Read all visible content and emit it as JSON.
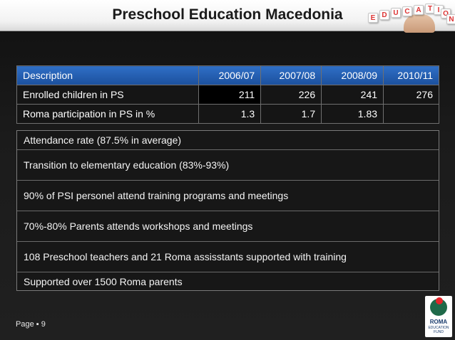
{
  "header": {
    "title": "Preschool Education Macedonia",
    "decoration_letters": [
      "E",
      "D",
      "U",
      "C",
      "A",
      "T",
      "I",
      "O",
      "N"
    ]
  },
  "table": {
    "columns": [
      "Description",
      "2006/07",
      "2007/08",
      "2008/09",
      "2010/11"
    ],
    "rows": [
      [
        "Enrolled children in PS",
        "211",
        "226",
        "241",
        "276"
      ],
      [
        "Roma participation in PS in %",
        "1.3",
        "1.7",
        "1.83",
        ""
      ]
    ]
  },
  "list": {
    "items": [
      "Attendance rate (87.5% in average)",
      "Transition to elementary education (83%-93%)",
      "90% of PSI personel attend training programs and meetings",
      "70%-80% Parents attends workshops and meetings",
      "108 Preschool teachers and 21 Roma assisstants supported with training",
      "Supported over 1500 Roma parents"
    ]
  },
  "footer": {
    "page_label": "Page ▪ 9",
    "logo_line1": "ROMA",
    "logo_line2": "EDUCATION",
    "logo_line3": "FUND"
  },
  "colors": {
    "header_blue": "#1b4f9c",
    "background": "#1b1b1b",
    "logo_green": "#1f6a4a",
    "logo_red": "#e3252a"
  }
}
